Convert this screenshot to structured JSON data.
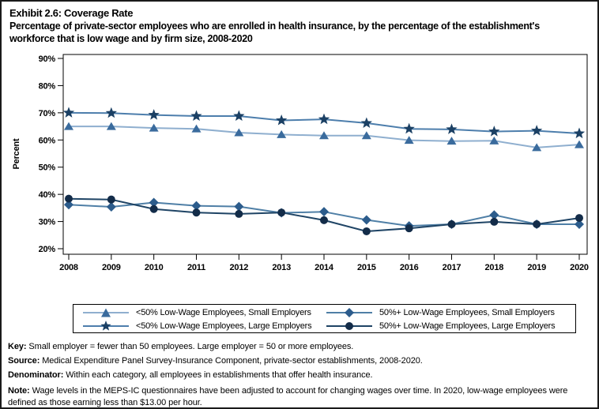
{
  "header": {
    "title": "Exhibit 2.6: Coverage Rate",
    "subtitle": "Percentage of private-sector employees who are enrolled in health insurance, by the percentage of the establishment's workforce that is low wage and by firm size, 2008-2020"
  },
  "chart_data": {
    "type": "line",
    "title": "Exhibit 2.6: Coverage Rate",
    "xlabel": "",
    "ylabel": "Percent",
    "ylim": [
      20,
      90
    ],
    "yticks": [
      20,
      30,
      40,
      50,
      60,
      70,
      80,
      90
    ],
    "ytick_suffix": "%",
    "grid": false,
    "legend_position": "bottom",
    "x": [
      2008,
      2009,
      2010,
      2011,
      2012,
      2013,
      2014,
      2015,
      2016,
      2017,
      2018,
      2019,
      2020
    ],
    "series": [
      {
        "name": "<50% Low-Wage Employees, Small Employers",
        "marker": "triangle",
        "marker_color": "#3A6B9D",
        "line_color": "#8FAFCF",
        "values": [
          65.0,
          65.0,
          64.4,
          64.1,
          62.7,
          62.0,
          61.6,
          61.6,
          59.9,
          59.6,
          59.7,
          57.2,
          58.3
        ]
      },
      {
        "name": "<50% Low-Wage Employees, Large Employers",
        "marker": "star",
        "marker_color": "#1B4064",
        "line_color": "#4D7EAC",
        "values": [
          70.0,
          69.9,
          69.2,
          68.8,
          68.8,
          67.2,
          67.6,
          66.2,
          64.1,
          63.9,
          63.1,
          63.4,
          62.4
        ]
      },
      {
        "name": "50%+ Low-Wage Employees, Small Employers",
        "marker": "diamond",
        "marker_color": "#2C5C8C",
        "line_color": "#4F7FA6",
        "values": [
          36.2,
          35.4,
          37.0,
          35.8,
          35.5,
          33.2,
          33.6,
          30.6,
          28.4,
          29.0,
          32.4,
          29.0,
          29.0
        ]
      },
      {
        "name": "50%+ Low-Wage Employees, Large Employers",
        "marker": "circle",
        "marker_color": "#132C49",
        "line_color": "#1F4465",
        "values": [
          38.4,
          38.1,
          34.6,
          33.3,
          32.8,
          33.3,
          30.5,
          26.4,
          27.5,
          29.0,
          29.9,
          29.0,
          31.3
        ]
      }
    ]
  },
  "notes": [
    {
      "label": "Key:",
      "text": " Small employer = fewer than 50 employees. Large employer = 50 or more employees."
    },
    {
      "label": "Source:",
      "text": " Medical Expenditure Panel Survey-Insurance Component, private-sector establishments, 2008-2020."
    },
    {
      "label": "Denominator:",
      "text": " Within each category, all employees in establishments that offer health insurance."
    },
    {
      "label": "Note:",
      "text": " Wage levels in the MEPS-IC questionnaires have been adjusted to account for changing wages over time. In 2020, low-wage employees were defined as those earning less than $13.00 per hour."
    }
  ]
}
